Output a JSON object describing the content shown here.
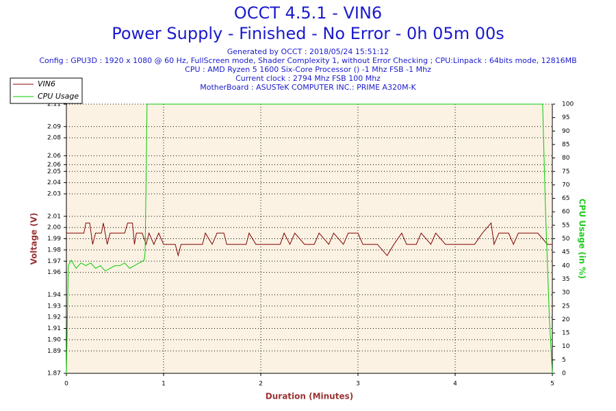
{
  "chart_data": {
    "type": "line",
    "title": "OCCT 4.5.1 - VIN6",
    "subtitle": "Power Supply - Finished - No Error - 0h 05m 00s",
    "info": [
      "Generated by OCCT : 2018/05/24 15:51:12",
      "Config : GPU3D : 1920 x 1080 @ 60 Hz, FullScreen mode, Shader Complexity 1, without Error Checking ; CPU:Linpack : 64bits mode, 12816MB",
      "CPU : AMD Ryzen 5 1600 Six-Core Processor () -1 Mhz FSB -1 Mhz",
      "Current clock : 2794 Mhz FSB 100 Mhz",
      "MotherBoard : ASUSTeK COMPUTER INC.: PRIME A320M-K"
    ],
    "xlabel": "Duration (Minutes)",
    "ylabel": "Voltage (V)",
    "y2label": "CPU Usage (in %)",
    "xlim": [
      0,
      5
    ],
    "xticks": [
      0,
      1,
      2,
      3,
      4,
      5
    ],
    "ylim": [
      1.87,
      2.11
    ],
    "yticks": [
      1.87,
      1.89,
      {
        "value": 1.9,
        "label": "1.90"
      },
      1.91,
      1.92,
      1.93,
      1.94,
      1.96,
      1.97,
      1.98,
      1.99,
      {
        "value": 2,
        "label": "2.00"
      },
      2.01,
      2.03,
      2.04,
      2.05,
      {
        "value": 2.056,
        "label": "2.06"
      },
      {
        "value": 2.064,
        "label": "2.06"
      },
      2.08,
      2.09,
      2.11
    ],
    "y2lim": [
      0,
      100
    ],
    "y2ticks": [
      0,
      5,
      10,
      15,
      20,
      25,
      30,
      35,
      40,
      45,
      50,
      55,
      60,
      65,
      70,
      75,
      80,
      85,
      90,
      95,
      100
    ],
    "grid": true,
    "legend": "top-left",
    "series": [
      {
        "name": "VIN6",
        "color": "#800000",
        "x": [
          0,
          0.18,
          0.2,
          0.24,
          0.27,
          0.3,
          0.36,
          0.38,
          0.42,
          0.45,
          0.6,
          0.63,
          0.68,
          0.7,
          0.72,
          0.78,
          0.82,
          0.85,
          0.9,
          0.95,
          1.0,
          1.12,
          1.15,
          1.18,
          1.4,
          1.43,
          1.5,
          1.55,
          1.62,
          1.65,
          1.85,
          1.88,
          1.95,
          2.2,
          2.24,
          2.3,
          2.35,
          2.45,
          2.55,
          2.6,
          2.7,
          2.75,
          2.85,
          2.9,
          3.0,
          3.05,
          3.2,
          3.3,
          3.37,
          3.45,
          3.5,
          3.6,
          3.65,
          3.75,
          3.8,
          3.9,
          4.2,
          4.28,
          4.37,
          4.4,
          4.45,
          4.55,
          4.6,
          4.65,
          4.85,
          4.95,
          5.0
        ],
        "values": [
          1.995,
          1.995,
          2.004,
          2.004,
          1.985,
          1.995,
          1.995,
          2.004,
          1.985,
          1.995,
          1.995,
          2.004,
          2.004,
          1.985,
          1.995,
          1.995,
          1.985,
          1.995,
          1.985,
          1.995,
          1.985,
          1.985,
          1.975,
          1.985,
          1.985,
          1.995,
          1.985,
          1.995,
          1.995,
          1.985,
          1.985,
          1.995,
          1.985,
          1.985,
          1.995,
          1.985,
          1.995,
          1.985,
          1.985,
          1.995,
          1.985,
          1.995,
          1.985,
          1.995,
          1.995,
          1.985,
          1.985,
          1.975,
          1.985,
          1.995,
          1.985,
          1.985,
          1.995,
          1.985,
          1.995,
          1.985,
          1.985,
          1.995,
          2.004,
          1.985,
          1.995,
          1.995,
          1.985,
          1.995,
          1.995,
          1.985,
          1.985
        ]
      },
      {
        "name": "CPU Usage",
        "color": "#00cc00",
        "axis": "y2",
        "x": [
          0,
          0.02,
          0.05,
          0.1,
          0.15,
          0.2,
          0.25,
          0.3,
          0.35,
          0.4,
          0.45,
          0.5,
          0.55,
          0.6,
          0.65,
          0.7,
          0.75,
          0.8,
          0.81,
          0.83,
          4.9,
          4.93,
          4.97,
          5.0
        ],
        "values": [
          0,
          40,
          42,
          39,
          41,
          40,
          41,
          39,
          40,
          38,
          39,
          40,
          40,
          41,
          39,
          40,
          41,
          42,
          45,
          100,
          100,
          60,
          20,
          0
        ]
      }
    ]
  }
}
